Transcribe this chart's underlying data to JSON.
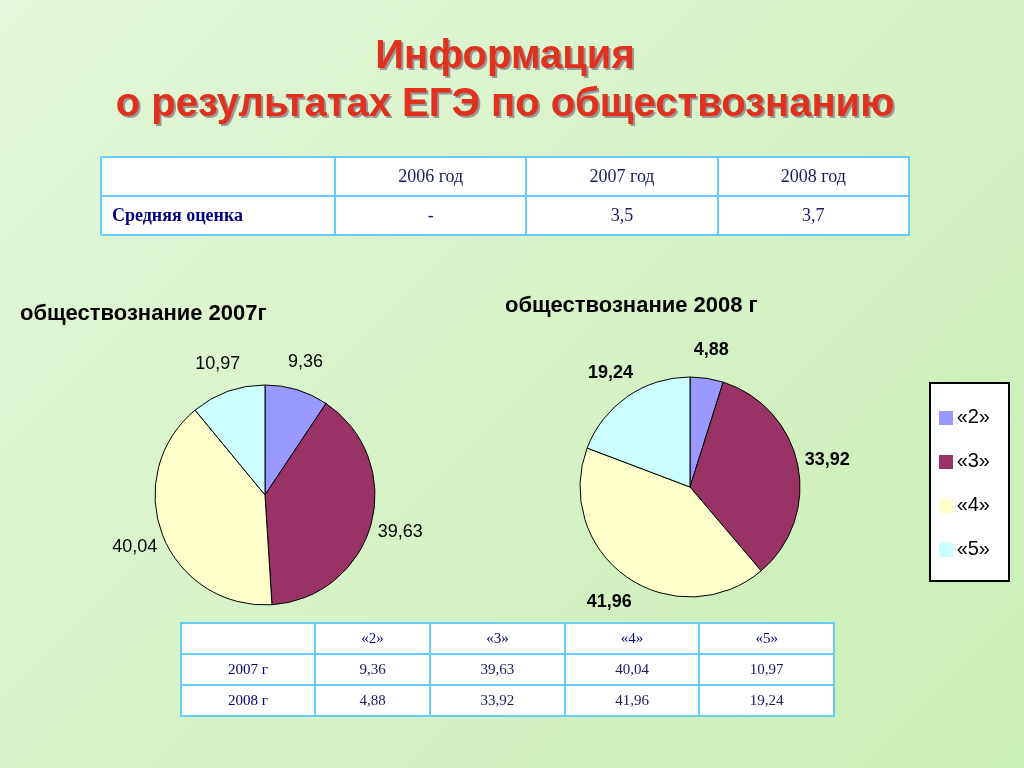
{
  "chart_data": [
    {
      "type": "other",
      "title": "Информация\nо результатах ЕГЭ по обществознанию",
      "annotations": [
        "2006 год",
        "2007 год",
        "2008 год",
        "Средняя оценка",
        "-",
        "3,5",
        "3,7"
      ]
    },
    {
      "type": "pie",
      "title": "обществознание 2007г",
      "categories": [
        null,
        null,
        null,
        null
      ],
      "values": [
        9.36,
        39.63,
        40.04,
        10.97
      ],
      "value_labels": [
        "9,36",
        "39,63",
        "40,04",
        "10,97"
      ],
      "colors": [
        "#9999ff",
        "#993366",
        "#ffffcc",
        "#ccffff"
      ],
      "annotations": [
        "2007 г"
      ]
    },
    {
      "type": "pie",
      "title": "обществознание 2008 г",
      "categories": [
        "«2»",
        "«3»",
        "«4»",
        "«5»"
      ],
      "values": [
        4.88,
        33.92,
        41.96,
        19.24
      ],
      "value_labels": [
        "4,88",
        "33,92",
        "41,96",
        "19,24"
      ],
      "colors": [
        "#9999ff",
        "#993366",
        "#ffffcc",
        "#ccffff"
      ],
      "legend": "right",
      "annotations": [
        "2008 г"
      ]
    }
  ]
}
